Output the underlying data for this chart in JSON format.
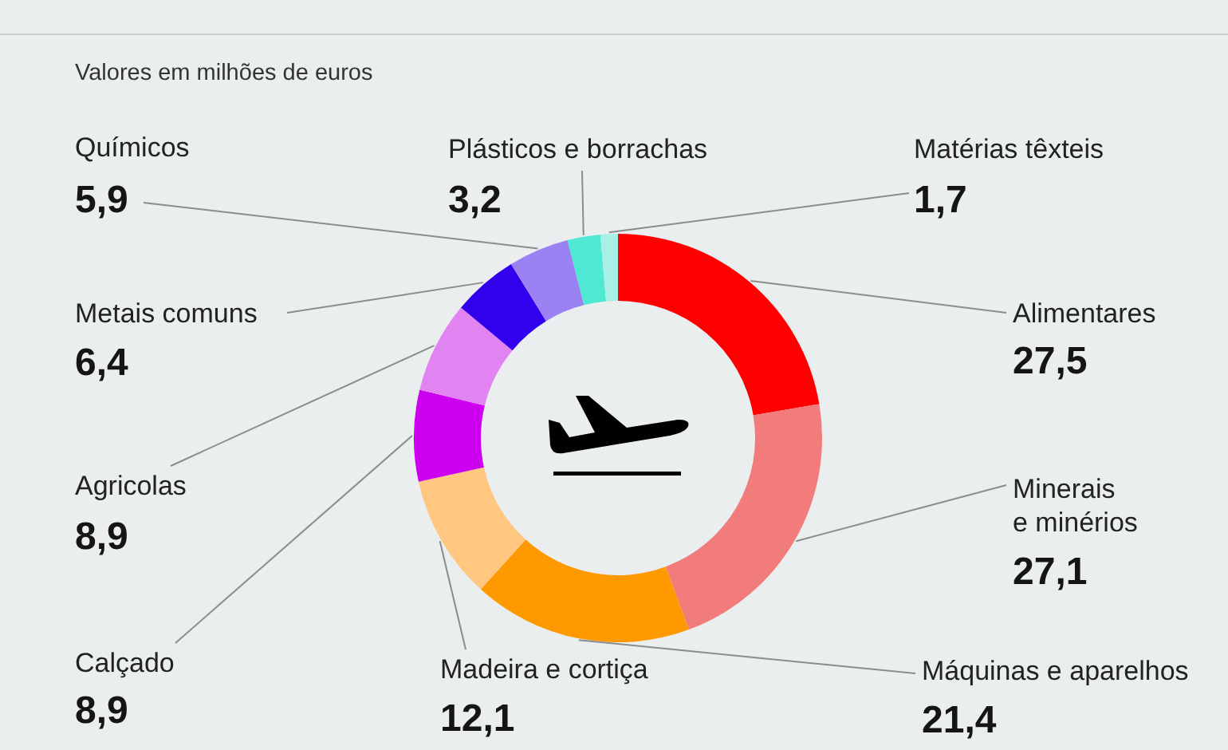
{
  "chart_data": {
    "type": "donut",
    "subtitle": "Valores em milhões de euros",
    "categories": [
      "Alimentares",
      "Minerais e minérios",
      "Máquinas e aparelhos",
      "Madeira e cortiça",
      "Calçado",
      "Agricolas",
      "Metais comuns",
      "Químicos",
      "Plásticos e borrachas",
      "Matérias têxteis"
    ],
    "values": [
      27.5,
      27.1,
      21.4,
      12.1,
      8.9,
      8.9,
      6.4,
      5.9,
      3.2,
      1.7
    ],
    "value_labels": [
      "27,5",
      "27,1",
      "21,4",
      "12,1",
      "8,9",
      "8,9",
      "6,4",
      "5,9",
      "3,2",
      "1,7"
    ],
    "colors": [
      "#ff0000",
      "#f27b7b",
      "#ff9900",
      "#ffc77f",
      "#cc00ee",
      "#e283f2",
      "#3300ee",
      "#9b82f2",
      "#4fe8d2",
      "#a8f0e6"
    ],
    "legend": false
  }
}
